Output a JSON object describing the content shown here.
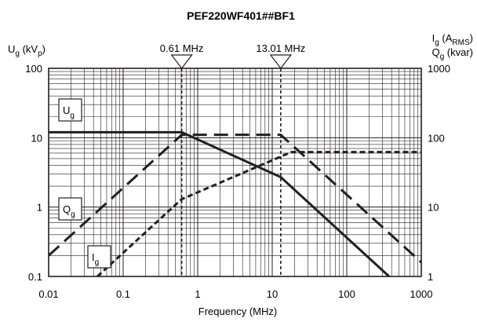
{
  "chart_data": {
    "type": "line",
    "title": "PEF220WF401##BF1",
    "xlabel": "Frequency (MHz)",
    "xscale": "log",
    "yscale": "log",
    "xlim": [
      0.01,
      1000
    ],
    "ylim_left": [
      0.1,
      100
    ],
    "ylim_right": [
      1,
      1000
    ],
    "x_ticks": [
      "0.01",
      "0.1",
      "1",
      "10",
      "100",
      "1000"
    ],
    "y_ticks_left": [
      "0.1",
      "1",
      "10",
      "100"
    ],
    "y_ticks_right": [
      "1",
      "10",
      "100",
      "1000"
    ],
    "ylabel_left": {
      "main": "U",
      "sub": "g",
      "rest": " (kV",
      "sub2": "p",
      "close": ")"
    },
    "ylabel_right_1": {
      "main": "I",
      "sub": "g",
      "rest": "  (A",
      "sub2": "RMS",
      "close": ")"
    },
    "ylabel_right_2": {
      "main": "Q",
      "sub": "g",
      "rest": " (kvar)"
    },
    "grid": true,
    "markers": [
      {
        "x": 0.61,
        "label": "0.61 MHz"
      },
      {
        "x": 13.01,
        "label": "13.01 MHz"
      }
    ],
    "series": [
      {
        "name": "Ug",
        "label_main": "U",
        "label_sub": "g",
        "axis": "left",
        "style": "solid",
        "x": [
          0.01,
          0.61,
          13.01,
          370
        ],
        "y": [
          12,
          12,
          2.7,
          0.1
        ]
      },
      {
        "name": "Qg",
        "label_main": "Q",
        "label_sub": "g",
        "axis": "right",
        "style": "long-dash",
        "x": [
          0.01,
          0.61,
          13.01,
          1000
        ],
        "y": [
          2,
          110,
          110,
          1.6
        ]
      },
      {
        "name": "Ig",
        "label_main": "I",
        "label_sub": "g",
        "axis": "right",
        "style": "short-dash",
        "x": [
          0.045,
          0.61,
          18,
          1000
        ],
        "y": [
          1,
          13,
          62,
          62
        ]
      }
    ]
  }
}
